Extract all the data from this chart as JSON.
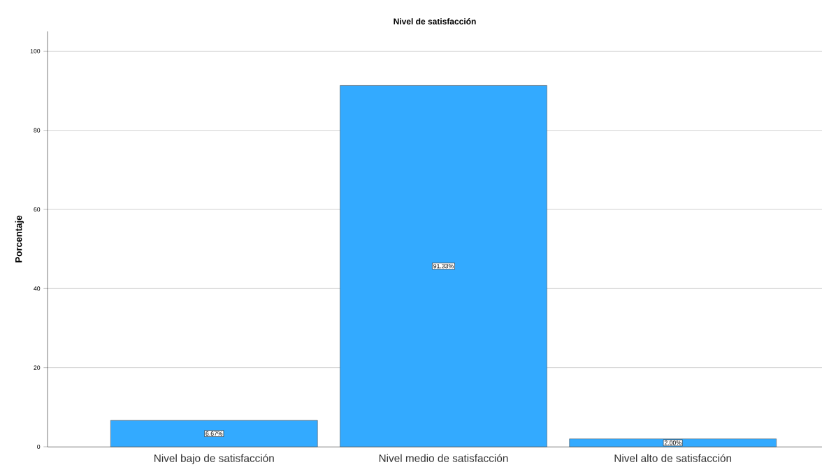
{
  "chart_data": {
    "type": "bar",
    "title": "Nivel de satisfacción",
    "ylabel": "Porcentaje",
    "categories": [
      "Nivel bajo de satisfacción",
      "Nivel medio de satisfacción",
      "Nivel alto de satisfacción"
    ],
    "values": [
      6.67,
      91.33,
      2.0
    ],
    "value_labels": [
      "6.67%",
      "91.33%",
      "2.00%"
    ],
    "color": "#33aaff",
    "ylim": [
      0,
      105
    ],
    "yticks": [
      0,
      20,
      40,
      60,
      80,
      100
    ],
    "grid": "y"
  }
}
